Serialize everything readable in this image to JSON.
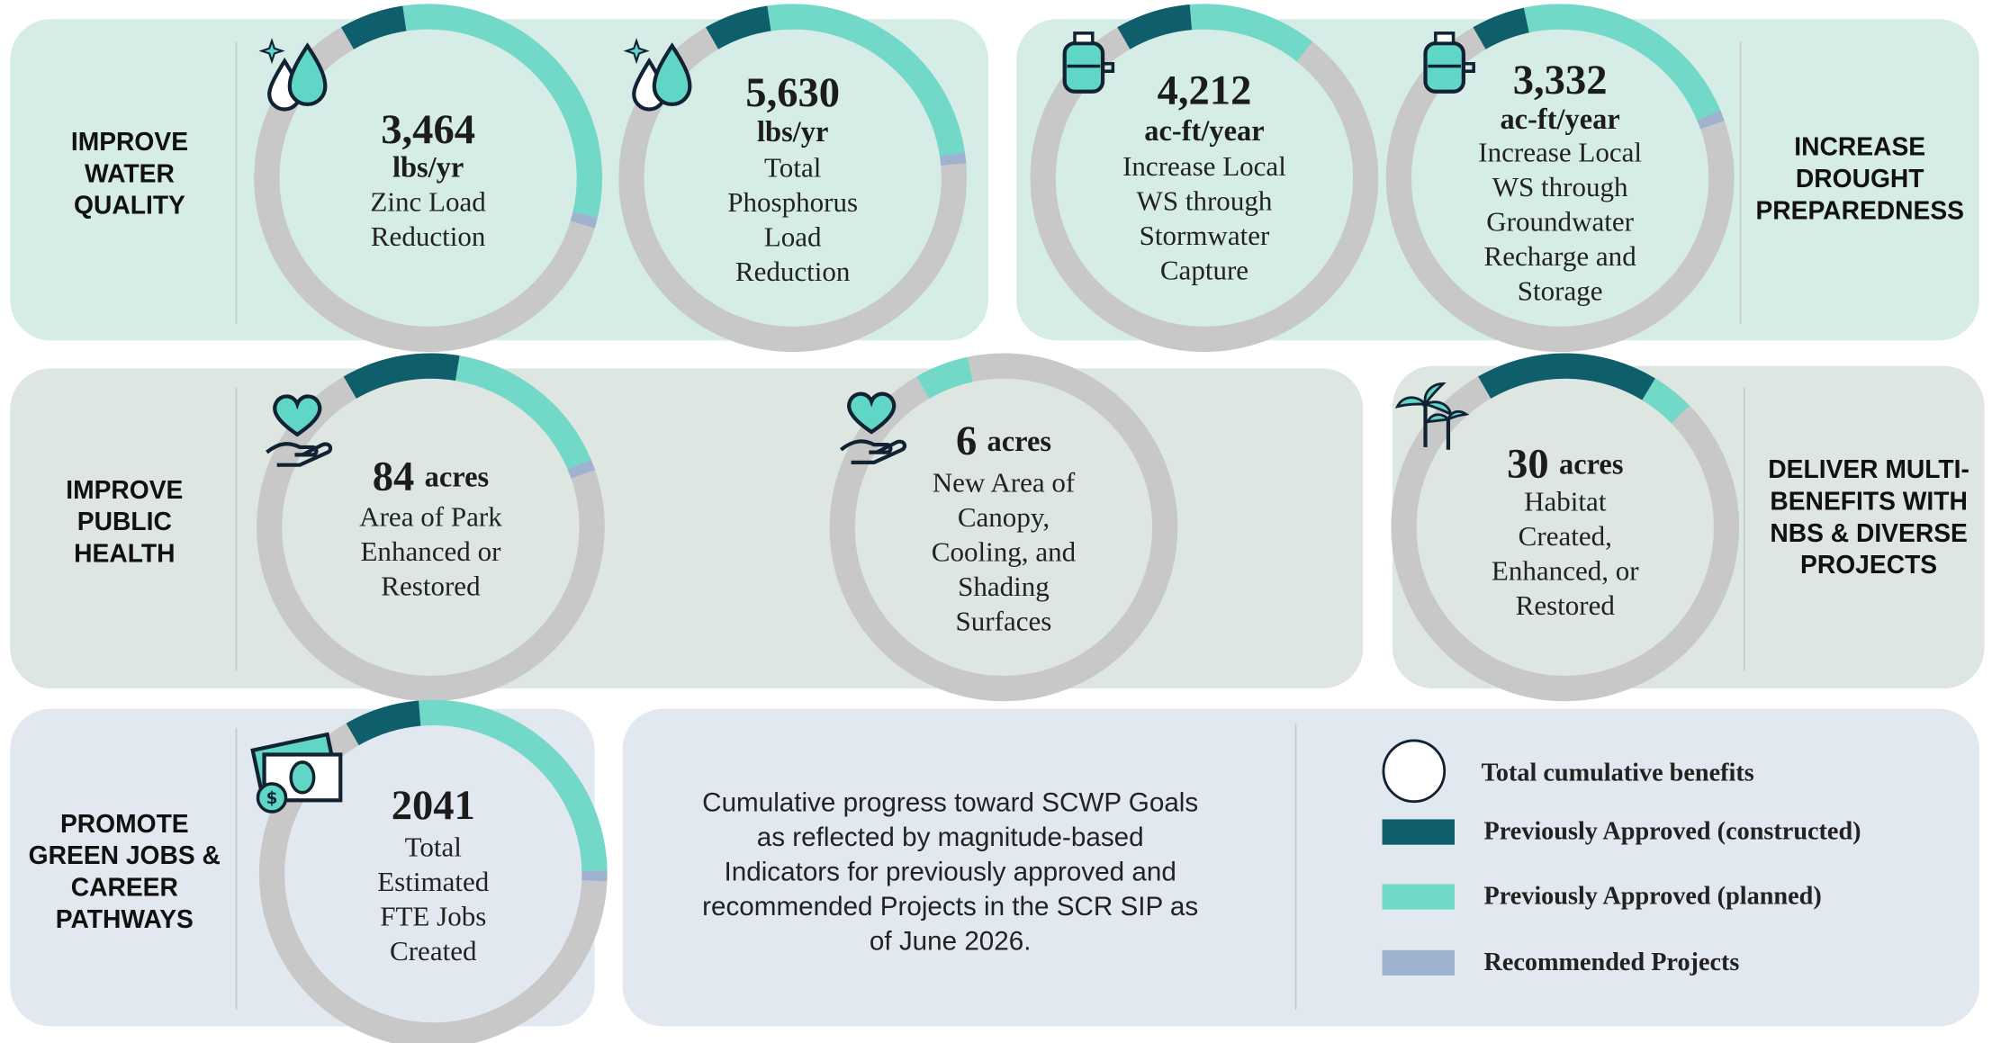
{
  "goals": [
    {
      "lines": [
        "IMPROVE",
        "WATER",
        "QUALITY"
      ]
    },
    {
      "lines": [
        "INCREASE",
        "DROUGHT",
        "PREPAREDNESS"
      ]
    },
    {
      "lines": [
        "IMPROVE",
        "PUBLIC",
        "HEALTH"
      ]
    },
    {
      "lines": [
        "DELIVER MULTI-",
        "BENEFITS WITH",
        "NBS & DIVERSE",
        "PROJECTS"
      ]
    },
    {
      "lines": [
        "PROMOTE",
        "GREEN JOBS &",
        "CAREER",
        "PATHWAYS"
      ]
    }
  ],
  "indicators": [
    {
      "value": "3,464",
      "unit": "lbs/yr",
      "description": [
        "Zinc Load",
        "Reduction"
      ],
      "segments": [
        6,
        31,
        1
      ]
    },
    {
      "value": "5,630",
      "unit": "lbs/yr",
      "description": [
        "Total",
        "Phosphorus",
        "Load",
        "Reduction"
      ],
      "segments": [
        6,
        25,
        1
      ]
    },
    {
      "value": "4,212",
      "unit": "ac-ft/year",
      "description": [
        "Increase Local",
        "WS through",
        "Stormwater",
        "Capture"
      ],
      "segments": [
        7,
        12,
        0
      ]
    },
    {
      "value": "3,332",
      "unit": "ac-ft/year",
      "description": [
        "Increase Local",
        "WS through",
        "Groundwater",
        "Recharge and",
        "Storage"
      ],
      "segments": [
        5,
        22,
        1
      ]
    },
    {
      "value": "84",
      "unit": "acres",
      "description": [
        "Area of Park",
        "Enhanced or",
        "Restored"
      ],
      "segments": [
        11,
        16,
        1
      ]
    },
    {
      "value": "6",
      "unit": "acres",
      "description": [
        "New Area of",
        "Canopy,",
        "Cooling, and",
        "Shading",
        "Surfaces"
      ],
      "segments": [
        0,
        5,
        0
      ]
    },
    {
      "value": "30",
      "unit": "acres",
      "description": [
        "Habitat",
        "Created,",
        "Enhanced, or",
        "Restored"
      ],
      "segments": [
        17,
        4,
        0
      ]
    },
    {
      "value": "2041",
      "description": [
        "Total",
        "Estimated",
        "FTE Jobs",
        "Created"
      ],
      "segments": [
        7,
        26,
        1
      ]
    }
  ],
  "note": [
    "Cumulative progress toward SCWP Goals",
    "as reflected by magnitude-based",
    "Indicators for previously approved and",
    "recommended Projects in the SCR SIP as",
    "of June 2026."
  ],
  "legend": {
    "symbol": "#",
    "total_label": "Total cumulative benefits",
    "items": [
      {
        "label": "Previously Approved (constructed)",
        "color": "#0e5f6b"
      },
      {
        "label": "Previously Approved (planned)",
        "color": "#72d9c8"
      },
      {
        "label": "Recommended Projects",
        "color": "#9fb2cf"
      }
    ]
  }
}
